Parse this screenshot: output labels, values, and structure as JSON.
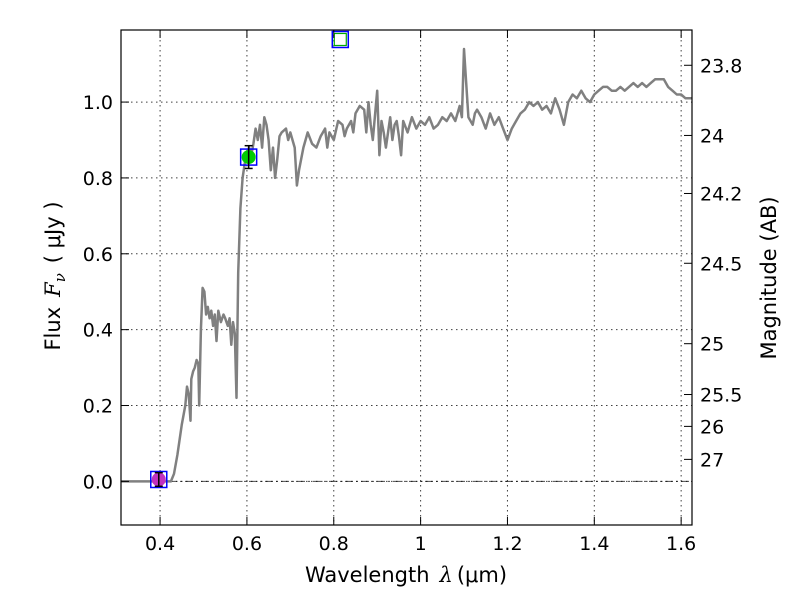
{
  "chart_data": {
    "type": "line",
    "xlabel_prefix": "Wavelength",
    "xlabel_symbol": "λ",
    "xlabel_unit": "(μm)",
    "ylabel_prefix": "Flux",
    "ylabel_symbol": "F",
    "ylabel_subscript": "ν",
    "ylabel_unit": "( μJy )",
    "y2label": "Magnitude (AB)",
    "xlim": [
      0.31,
      1.625
    ],
    "ylim": [
      -0.115,
      1.19
    ],
    "grid": true,
    "x_ticks": [
      0.4,
      0.6,
      0.8,
      1.0,
      1.2,
      1.4,
      1.6
    ],
    "x_tick_labels": [
      "0.4",
      "0.6",
      "0.8",
      "1",
      "1.2",
      "1.4",
      "1.6"
    ],
    "y_ticks": [
      0.0,
      0.2,
      0.4,
      0.6,
      0.8,
      1.0
    ],
    "y_tick_labels": [
      "0.0",
      "0.2",
      "0.4",
      "0.6",
      "0.8",
      "1.0"
    ],
    "y2_ticks": [
      {
        "label": "23.8",
        "flux": 1.097
      },
      {
        "label": "24",
        "flux": 0.912
      },
      {
        "label": "24.2",
        "flux": 0.759
      },
      {
        "label": "24.5",
        "flux": 0.575
      },
      {
        "label": "25",
        "flux": 0.363
      },
      {
        "label": "25.5",
        "flux": 0.229
      },
      {
        "label": "26",
        "flux": 0.145
      },
      {
        "label": "27",
        "flux": 0.058
      }
    ],
    "zero_line": 0.0,
    "sed_color": "#808080",
    "sed": [
      [
        0.31,
        0.0
      ],
      [
        0.4,
        0.0
      ],
      [
        0.425,
        0.0
      ],
      [
        0.432,
        0.02
      ],
      [
        0.44,
        0.07
      ],
      [
        0.45,
        0.15
      ],
      [
        0.458,
        0.2
      ],
      [
        0.462,
        0.25
      ],
      [
        0.466,
        0.23
      ],
      [
        0.47,
        0.16
      ],
      [
        0.472,
        0.27
      ],
      [
        0.476,
        0.29
      ],
      [
        0.48,
        0.3
      ],
      [
        0.484,
        0.32
      ],
      [
        0.488,
        0.31
      ],
      [
        0.49,
        0.2
      ],
      [
        0.494,
        0.4
      ],
      [
        0.498,
        0.51
      ],
      [
        0.502,
        0.5
      ],
      [
        0.506,
        0.44
      ],
      [
        0.51,
        0.46
      ],
      [
        0.514,
        0.43
      ],
      [
        0.518,
        0.45
      ],
      [
        0.522,
        0.41
      ],
      [
        0.526,
        0.44
      ],
      [
        0.53,
        0.37
      ],
      [
        0.534,
        0.45
      ],
      [
        0.54,
        0.42
      ],
      [
        0.546,
        0.44
      ],
      [
        0.55,
        0.43
      ],
      [
        0.556,
        0.41
      ],
      [
        0.56,
        0.43
      ],
      [
        0.564,
        0.36
      ],
      [
        0.568,
        0.42
      ],
      [
        0.572,
        0.39
      ],
      [
        0.576,
        0.22
      ],
      [
        0.58,
        0.55
      ],
      [
        0.585,
        0.72
      ],
      [
        0.59,
        0.8
      ],
      [
        0.595,
        0.84
      ],
      [
        0.6,
        0.86
      ],
      [
        0.605,
        0.88
      ],
      [
        0.61,
        0.86
      ],
      [
        0.615,
        0.89
      ],
      [
        0.62,
        0.93
      ],
      [
        0.625,
        0.9
      ],
      [
        0.63,
        0.94
      ],
      [
        0.635,
        0.88
      ],
      [
        0.64,
        0.96
      ],
      [
        0.645,
        0.94
      ],
      [
        0.65,
        0.9
      ],
      [
        0.655,
        0.82
      ],
      [
        0.66,
        0.88
      ],
      [
        0.665,
        0.8
      ],
      [
        0.67,
        0.85
      ],
      [
        0.675,
        0.91
      ],
      [
        0.68,
        0.92
      ],
      [
        0.69,
        0.93
      ],
      [
        0.695,
        0.9
      ],
      [
        0.7,
        0.92
      ],
      [
        0.71,
        0.88
      ],
      [
        0.715,
        0.78
      ],
      [
        0.72,
        0.82
      ],
      [
        0.73,
        0.88
      ],
      [
        0.74,
        0.92
      ],
      [
        0.75,
        0.89
      ],
      [
        0.76,
        0.88
      ],
      [
        0.77,
        0.91
      ],
      [
        0.78,
        0.93
      ],
      [
        0.785,
        0.88
      ],
      [
        0.79,
        0.92
      ],
      [
        0.8,
        0.9
      ],
      [
        0.81,
        0.95
      ],
      [
        0.82,
        0.94
      ],
      [
        0.825,
        0.91
      ],
      [
        0.83,
        0.93
      ],
      [
        0.84,
        0.95
      ],
      [
        0.845,
        0.92
      ],
      [
        0.85,
        0.97
      ],
      [
        0.86,
        0.99
      ],
      [
        0.87,
        0.98
      ],
      [
        0.875,
        0.92
      ],
      [
        0.88,
        1.0
      ],
      [
        0.885,
        0.94
      ],
      [
        0.89,
        0.9
      ],
      [
        0.9,
        1.03
      ],
      [
        0.905,
        0.86
      ],
      [
        0.91,
        0.95
      ],
      [
        0.915,
        0.92
      ],
      [
        0.92,
        0.88
      ],
      [
        0.93,
        0.96
      ],
      [
        0.935,
        0.9
      ],
      [
        0.94,
        0.94
      ],
      [
        0.945,
        0.95
      ],
      [
        0.95,
        0.91
      ],
      [
        0.955,
        0.86
      ],
      [
        0.96,
        0.95
      ],
      [
        0.97,
        0.92
      ],
      [
        0.98,
        0.96
      ],
      [
        0.99,
        0.93
      ],
      [
        1.0,
        0.95
      ],
      [
        1.01,
        0.94
      ],
      [
        1.02,
        0.96
      ],
      [
        1.03,
        0.93
      ],
      [
        1.04,
        0.94
      ],
      [
        1.05,
        0.96
      ],
      [
        1.06,
        0.95
      ],
      [
        1.07,
        0.97
      ],
      [
        1.08,
        0.95
      ],
      [
        1.09,
        0.99
      ],
      [
        1.095,
        0.96
      ],
      [
        1.1,
        1.14
      ],
      [
        1.105,
        1.05
      ],
      [
        1.11,
        0.96
      ],
      [
        1.12,
        0.94
      ],
      [
        1.125,
        0.97
      ],
      [
        1.13,
        0.98
      ],
      [
        1.14,
        0.96
      ],
      [
        1.15,
        0.93
      ],
      [
        1.16,
        0.97
      ],
      [
        1.17,
        0.94
      ],
      [
        1.18,
        0.96
      ],
      [
        1.19,
        0.93
      ],
      [
        1.2,
        0.9
      ],
      [
        1.21,
        0.93
      ],
      [
        1.22,
        0.95
      ],
      [
        1.23,
        0.97
      ],
      [
        1.24,
        0.98
      ],
      [
        1.25,
        1.0
      ],
      [
        1.26,
        0.99
      ],
      [
        1.27,
        1.0
      ],
      [
        1.28,
        0.98
      ],
      [
        1.29,
        0.99
      ],
      [
        1.3,
        0.97
      ],
      [
        1.31,
        1.01
      ],
      [
        1.32,
        0.98
      ],
      [
        1.33,
        0.94
      ],
      [
        1.34,
        1.0
      ],
      [
        1.35,
        1.02
      ],
      [
        1.36,
        1.01
      ],
      [
        1.37,
        1.03
      ],
      [
        1.38,
        1.01
      ],
      [
        1.39,
        1.0
      ],
      [
        1.4,
        1.02
      ],
      [
        1.41,
        1.03
      ],
      [
        1.42,
        1.04
      ],
      [
        1.43,
        1.04
      ],
      [
        1.44,
        1.03
      ],
      [
        1.45,
        1.03
      ],
      [
        1.46,
        1.04
      ],
      [
        1.47,
        1.03
      ],
      [
        1.48,
        1.04
      ],
      [
        1.49,
        1.05
      ],
      [
        1.5,
        1.04
      ],
      [
        1.51,
        1.05
      ],
      [
        1.52,
        1.04
      ],
      [
        1.53,
        1.05
      ],
      [
        1.54,
        1.06
      ],
      [
        1.55,
        1.06
      ],
      [
        1.56,
        1.06
      ],
      [
        1.57,
        1.04
      ],
      [
        1.58,
        1.03
      ],
      [
        1.59,
        1.02
      ],
      [
        1.6,
        1.02
      ],
      [
        1.61,
        1.01
      ],
      [
        1.625,
        1.01
      ]
    ],
    "photometry": [
      {
        "wavelength": 0.397,
        "flux": 0.005,
        "yerr": 0.018,
        "marker_color": "#c030c0",
        "box_color": "#0000ff",
        "filled": true
      },
      {
        "wavelength": 0.604,
        "flux": 0.855,
        "yerr": 0.03,
        "marker_color": "#00cc00",
        "box_color": "#0000ff",
        "filled": true
      },
      {
        "wavelength": 0.815,
        "flux": 1.165,
        "yerr": 0.0,
        "marker_color": "#00aa00",
        "box_color": "#0000ff",
        "filled": false
      }
    ]
  }
}
